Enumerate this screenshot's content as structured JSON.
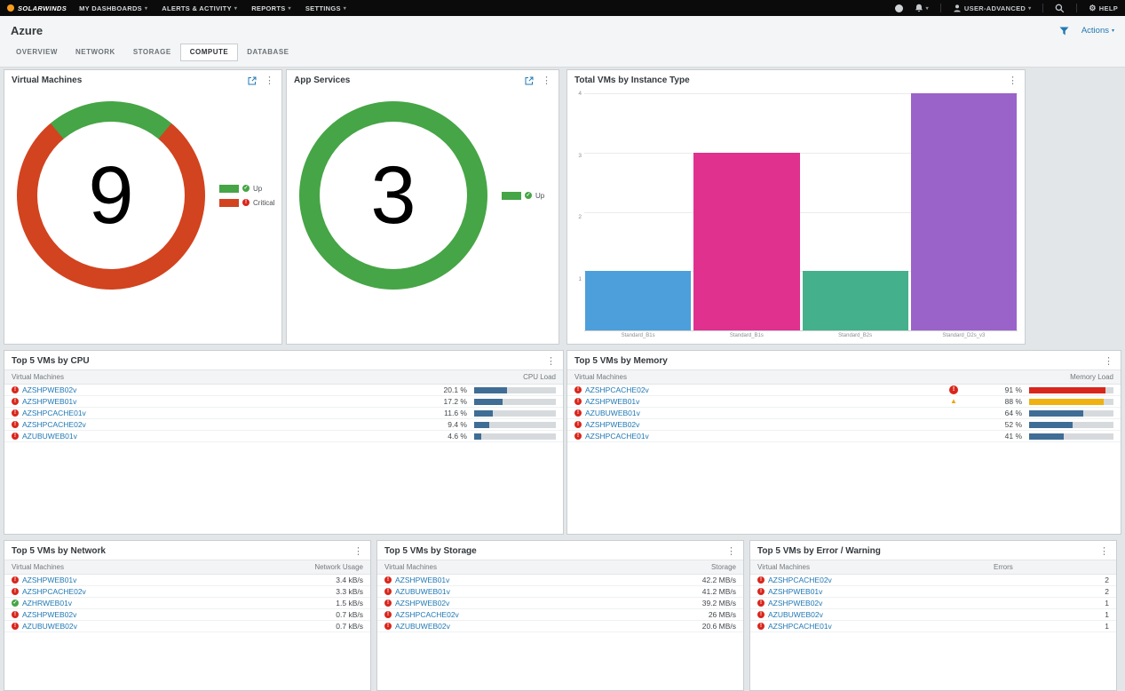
{
  "topbar": {
    "brand": "SOLARWINDS",
    "menus": [
      "MY DASHBOARDS",
      "ALERTS & ACTIVITY",
      "REPORTS",
      "SETTINGS"
    ],
    "user_label": "USER-ADVANCED",
    "help_label": "HELP"
  },
  "page": {
    "title": "Azure",
    "actions_label": "Actions"
  },
  "tabs": {
    "items": [
      {
        "label": "OVERVIEW"
      },
      {
        "label": "NETWORK"
      },
      {
        "label": "STORAGE"
      },
      {
        "label": "COMPUTE",
        "active": true
      },
      {
        "label": "DATABASE"
      }
    ]
  },
  "colors": {
    "up": "#46a546",
    "critical": "#d9261c",
    "warning": "#efa30b",
    "load_bar": "#3f6d95"
  },
  "widgets": {
    "virtual_machines": {
      "title": "Virtual Machines",
      "count": "9",
      "legend": [
        {
          "label": "Up",
          "color": "#46a546"
        },
        {
          "label": "Critical",
          "color": "#d2431f"
        }
      ],
      "chart_data": {
        "type": "donut",
        "total": 9,
        "rotate": -40,
        "segments": [
          {
            "label": "Up",
            "value": 2,
            "color": "#46a546"
          },
          {
            "label": "Critical",
            "value": 7,
            "color": "#d2431f"
          }
        ]
      }
    },
    "app_services": {
      "title": "App Services",
      "count": "3",
      "legend": [
        {
          "label": "Up",
          "color": "#46a546"
        }
      ],
      "chart_data": {
        "type": "donut",
        "total": 3,
        "rotate": 0,
        "segments": [
          {
            "label": "Up",
            "value": 3,
            "color": "#46a546"
          }
        ]
      }
    },
    "instance_type": {
      "title": "Total VMs by Instance Type",
      "chart_data": {
        "type": "bar",
        "categories": [
          "Standard_B1s",
          "Standard_B1s",
          "Standard_B2s",
          "Standard_D2s_v3"
        ],
        "values": [
          1,
          3,
          1,
          4
        ],
        "colors": [
          "#4d9fdb",
          "#e0318f",
          "#45b08c",
          "#9a63c9"
        ],
        "ylim": [
          0,
          4
        ],
        "yticks": [
          1,
          2,
          3,
          4
        ]
      }
    },
    "top_cpu": {
      "title": "Top 5 VMs by CPU",
      "columns": {
        "name": "Virtual Machines",
        "value": "CPU Load"
      },
      "bar_max": 50,
      "rows": [
        {
          "name": "AZSHPWEB02v",
          "status": "critical",
          "value": "20.1 %",
          "pct": 20.1
        },
        {
          "name": "AZSHPWEB01v",
          "status": "critical",
          "value": "17.2 %",
          "pct": 17.2
        },
        {
          "name": "AZSHPCACHE01v",
          "status": "critical",
          "value": "11.6 %",
          "pct": 11.6
        },
        {
          "name": "AZSHPCACHE02v",
          "status": "critical",
          "value": "9.4 %",
          "pct": 9.4
        },
        {
          "name": "AZUBUWEB01v",
          "status": "critical",
          "value": "4.6 %",
          "pct": 4.6
        }
      ]
    },
    "top_memory": {
      "title": "Top 5 VMs by Memory",
      "columns": {
        "name": "Virtual Machines",
        "value": "Memory Load"
      },
      "bar_max": 100,
      "rows": [
        {
          "name": "AZSHPCACHE02v",
          "status": "critical",
          "badge": "critical",
          "value": "91 %",
          "pct": 91,
          "bar_color": "#d9261c"
        },
        {
          "name": "AZSHPWEB01v",
          "status": "critical",
          "badge": "warning",
          "value": "88 %",
          "pct": 88,
          "bar_color": "#efb211"
        },
        {
          "name": "AZUBUWEB01v",
          "status": "critical",
          "value": "64 %",
          "pct": 64,
          "bar_color": "#3f6d95"
        },
        {
          "name": "AZSHPWEB02v",
          "status": "critical",
          "value": "52 %",
          "pct": 52,
          "bar_color": "#3f6d95"
        },
        {
          "name": "AZSHPCACHE01v",
          "status": "critical",
          "value": "41 %",
          "pct": 41,
          "bar_color": "#3f6d95"
        }
      ]
    },
    "top_network": {
      "title": "Top 5 VMs by Network",
      "columns": {
        "name": "Virtual Machines",
        "value": "Network Usage"
      },
      "rows": [
        {
          "name": "AZSHPWEB01v",
          "status": "critical",
          "value": "3.4 kB/s"
        },
        {
          "name": "AZSHPCACHE02v",
          "status": "critical",
          "value": "3.3 kB/s"
        },
        {
          "name": "AZHRWEB01v",
          "status": "up",
          "value": "1.5 kB/s"
        },
        {
          "name": "AZSHPWEB02v",
          "status": "critical",
          "value": "0.7 kB/s"
        },
        {
          "name": "AZUBUWEB02v",
          "status": "critical",
          "value": "0.7 kB/s"
        }
      ]
    },
    "top_storage": {
      "title": "Top 5 VMs by Storage",
      "columns": {
        "name": "Virtual Machines",
        "value": "Storage"
      },
      "rows": [
        {
          "name": "AZSHPWEB01v",
          "status": "critical",
          "value": "42.2 MB/s"
        },
        {
          "name": "AZUBUWEB01v",
          "status": "critical",
          "value": "41.2 MB/s"
        },
        {
          "name": "AZSHPWEB02v",
          "status": "critical",
          "value": "39.2 MB/s"
        },
        {
          "name": "AZSHPCACHE02v",
          "status": "critical",
          "value": "26 MB/s"
        },
        {
          "name": "AZUBUWEB02v",
          "status": "critical",
          "value": "20.6 MB/s"
        }
      ]
    },
    "top_errors": {
      "title": "Top 5 VMs by Error / Warning",
      "columns": {
        "name": "Virtual Machines",
        "value": "Errors"
      },
      "rows": [
        {
          "name": "AZSHPCACHE02v",
          "status": "critical",
          "value": "2"
        },
        {
          "name": "AZSHPWEB01v",
          "status": "critical",
          "value": "2"
        },
        {
          "name": "AZSHPWEB02v",
          "status": "critical",
          "value": "1"
        },
        {
          "name": "AZUBUWEB02v",
          "status": "critical",
          "value": "1"
        },
        {
          "name": "AZSHPCACHE01v",
          "status": "critical",
          "value": "1"
        }
      ]
    }
  }
}
